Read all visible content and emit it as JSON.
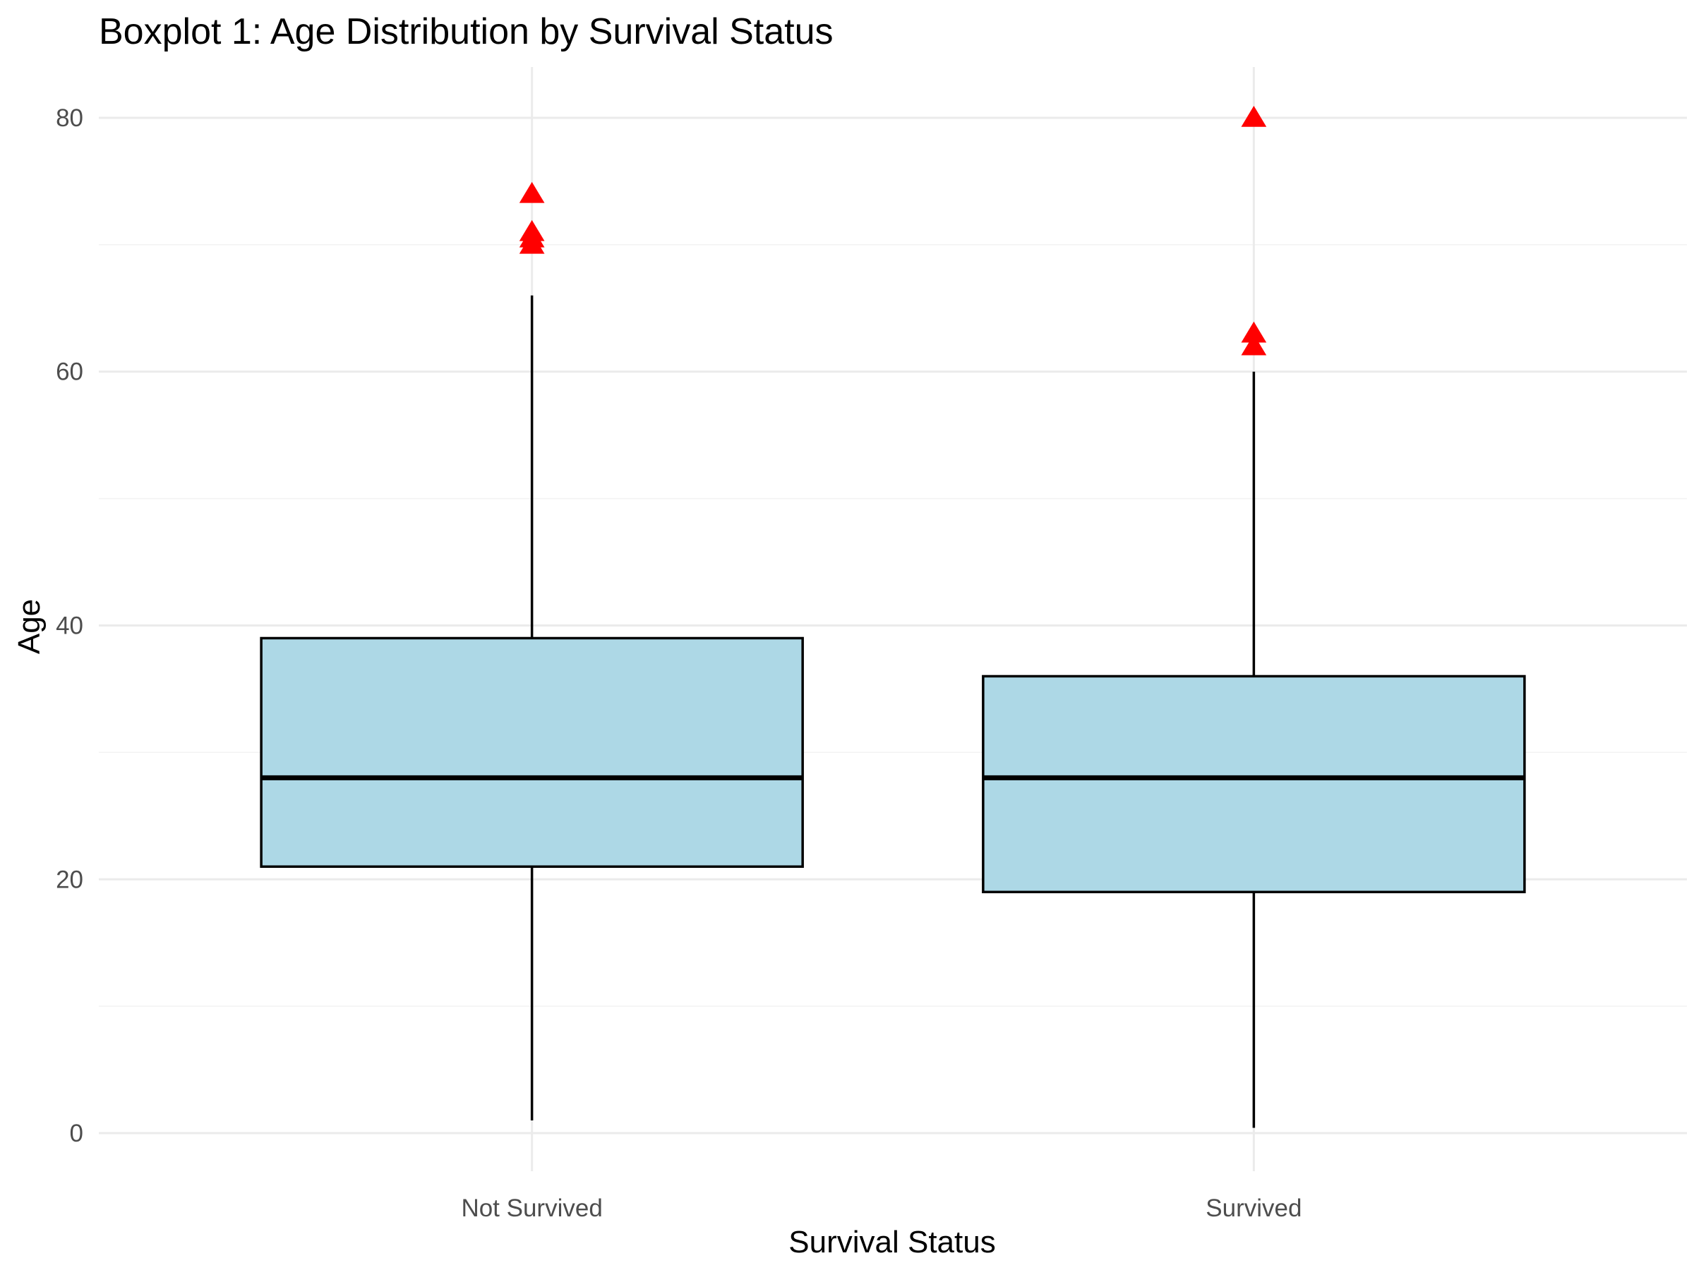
{
  "chart_data": {
    "type": "boxplot",
    "title": "Boxplot 1: Age Distribution by Survival Status",
    "xlabel": "Survival Status",
    "ylabel": "Age",
    "ylim": [
      -3,
      84
    ],
    "yticks": [
      0,
      20,
      40,
      60,
      80
    ],
    "grid": true,
    "categories": [
      "Not Survived",
      "Survived"
    ],
    "boxes": [
      {
        "category": "Not Survived",
        "whisker_low": 1,
        "q1": 21,
        "median": 28,
        "q3": 39,
        "whisker_high": 66,
        "outliers": [
          70,
          70.5,
          71,
          74
        ]
      },
      {
        "category": "Survived",
        "whisker_low": 0.42,
        "q1": 19,
        "median": 28,
        "q3": 36,
        "whisker_high": 60,
        "outliers": [
          62,
          63,
          80
        ]
      }
    ],
    "colors": {
      "box_fill": "#add8e6",
      "box_stroke": "#000000",
      "outlier": "#ff0000"
    },
    "outlier_shape": "triangle"
  }
}
